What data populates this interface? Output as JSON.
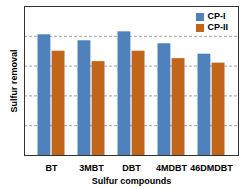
{
  "chart_data": {
    "type": "bar",
    "categories": [
      "BT",
      "3MBT",
      "DBT",
      "4MDBT",
      "46DMDBT"
    ],
    "series": [
      {
        "name": "CP-I",
        "color": "#4f81bd",
        "values": [
          81,
          77,
          83,
          75,
          68
        ]
      },
      {
        "name": "CP-II",
        "color": "#c0651a",
        "values": [
          70,
          63,
          70,
          65,
          62
        ]
      }
    ],
    "x_label": "Sulfur compounds",
    "y_label": "Sulfur removal",
    "ylim": [
      0,
      100
    ],
    "yticks": [
      0,
      20,
      40,
      60,
      80,
      100
    ],
    "grid": true,
    "legend": "top-right",
    "tick_labels": "x"
  }
}
